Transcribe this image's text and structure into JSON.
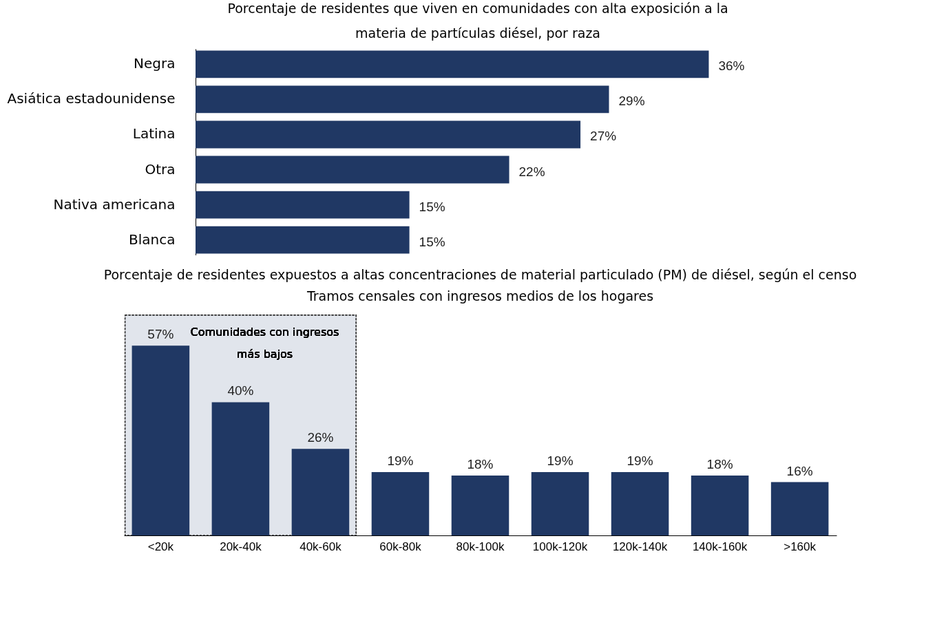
{
  "chart_data": [
    {
      "type": "bar",
      "orientation": "horizontal",
      "title": "Porcentaje de residentes que viven en comunidades con alta exposición a la materia de partículas diésel, por raza",
      "categories": [
        "Negra",
        "Asiática estadounidense",
        "Latina",
        "Otra",
        "Nativa americana",
        "Blanca"
      ],
      "values": [
        36,
        29,
        27,
        22,
        15,
        15
      ],
      "value_labels": [
        "36%",
        "29%",
        "27%",
        "22%",
        "15%",
        "15%"
      ],
      "color": "#203864"
    },
    {
      "type": "bar",
      "title": "Porcentaje de residentes expuestos a altas concentraciones de material particulado (PM) de diésel, según el censo",
      "subtitle": "Tramos censales con ingresos medios de los hogares",
      "categories": [
        "<20k",
        "20k-40k",
        "40k-60k",
        "60k-80k",
        "80k-100k",
        "100k-120k",
        "120k-140k",
        "140k-160k",
        ">160k"
      ],
      "values": [
        57,
        40,
        26,
        19,
        18,
        19,
        19,
        18,
        16
      ],
      "value_labels": [
        "57%",
        "40%",
        "26%",
        "19%",
        "18%",
        "19%",
        "19%",
        "18%",
        "16%"
      ],
      "color": "#203864",
      "bands": [
        {
          "axis": "x",
          "from": "<20k",
          "to": "40k-60k",
          "label": "Comunidades con ingresos más bajos"
        }
      ]
    }
  ]
}
